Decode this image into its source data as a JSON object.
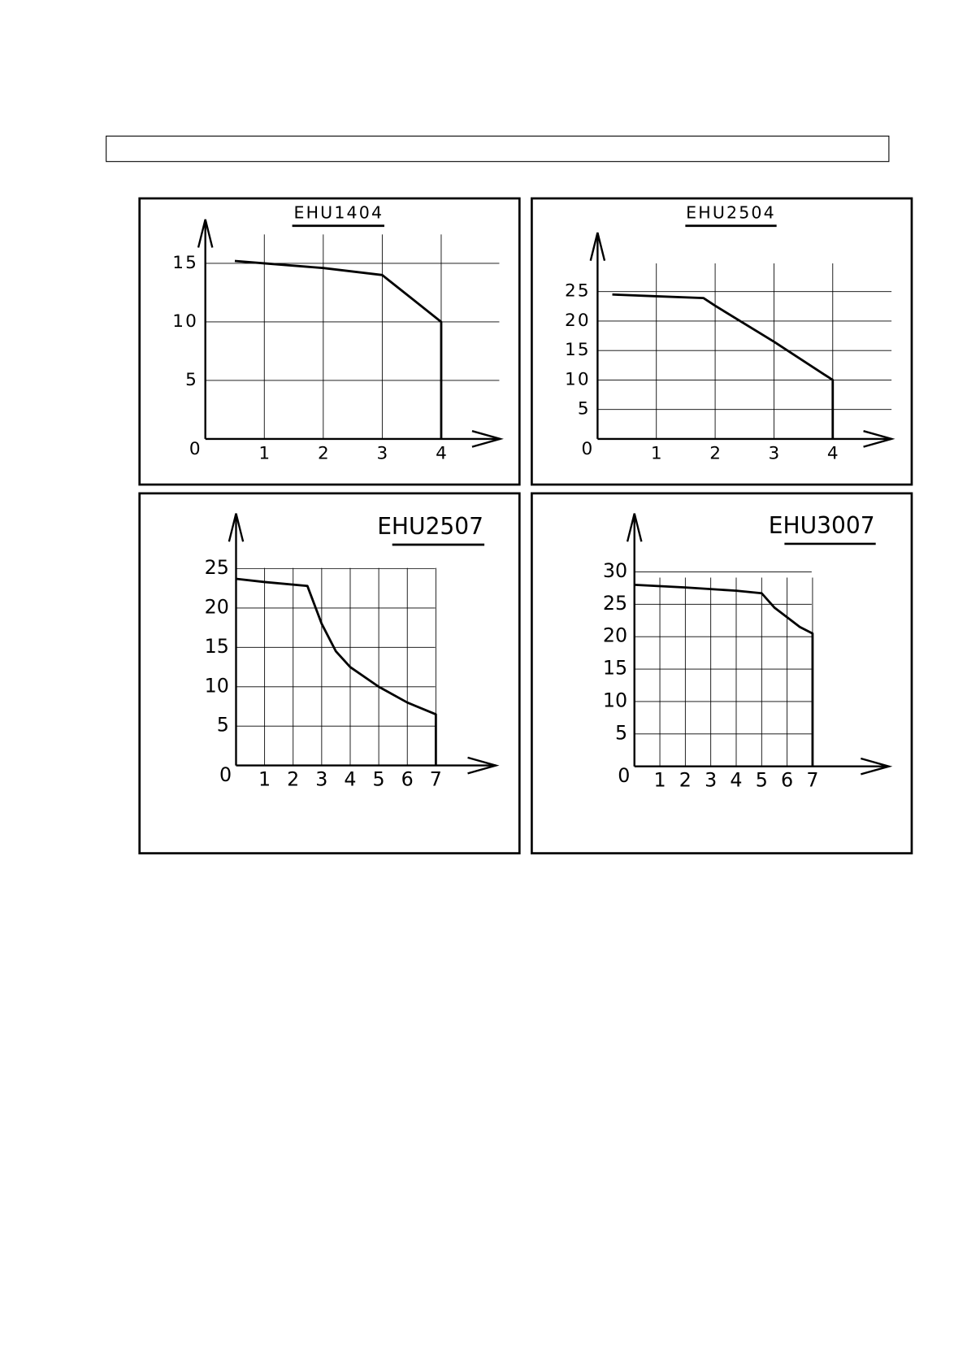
{
  "chart_data": [
    {
      "type": "line",
      "title": "EHU1404",
      "x": [
        0.5,
        1,
        2,
        3,
        3.1,
        3.5,
        4,
        4
      ],
      "values": [
        15.2,
        15,
        14.6,
        14,
        13.6,
        12,
        10,
        0
      ],
      "color": "#000000",
      "xlim": [
        0,
        5
      ],
      "ylim": [
        0,
        18.75
      ],
      "xticks": [
        0,
        1,
        2,
        3,
        4
      ],
      "yticks": [
        5,
        10,
        15
      ],
      "grid": true
    },
    {
      "type": "line",
      "title": "EHU2504",
      "x": [
        0.25,
        1,
        1.8,
        2,
        3,
        4,
        4
      ],
      "values": [
        24.5,
        24.2,
        23.9,
        22.6,
        16.5,
        10,
        0
      ],
      "color": "#000000",
      "xlim": [
        0,
        5
      ],
      "ylim": [
        0,
        35
      ],
      "xticks": [
        0,
        1,
        2,
        3,
        4
      ],
      "yticks": [
        5,
        10,
        15,
        20,
        25
      ],
      "grid": true
    },
    {
      "type": "line",
      "title": "EHU2507",
      "x": [
        0,
        1,
        2.5,
        3,
        3.5,
        4,
        5,
        6,
        7,
        7
      ],
      "values": [
        23.7,
        23.3,
        22.8,
        18,
        14.5,
        12.5,
        10,
        8,
        6.5,
        0
      ],
      "color": "#000000",
      "xlim": [
        0,
        9.1
      ],
      "ylim": [
        0,
        32
      ],
      "xticks": [
        0,
        1,
        2,
        3,
        4,
        5,
        6,
        7
      ],
      "yticks": [
        5,
        10,
        15,
        20,
        25
      ],
      "grid": true
    },
    {
      "type": "line",
      "title": "EHU3007",
      "x": [
        0,
        2,
        4,
        5,
        5.5,
        6.5,
        7,
        7
      ],
      "values": [
        28,
        27.6,
        27.1,
        26.7,
        24.5,
        21.5,
        20.5,
        0
      ],
      "color": "#000000",
      "xlim": [
        0,
        10
      ],
      "ylim": [
        0,
        39
      ],
      "xticks": [
        0,
        1,
        2,
        3,
        4,
        5,
        6,
        7
      ],
      "yticks": [
        5,
        10,
        15,
        20,
        25,
        30
      ],
      "grid": true
    }
  ]
}
